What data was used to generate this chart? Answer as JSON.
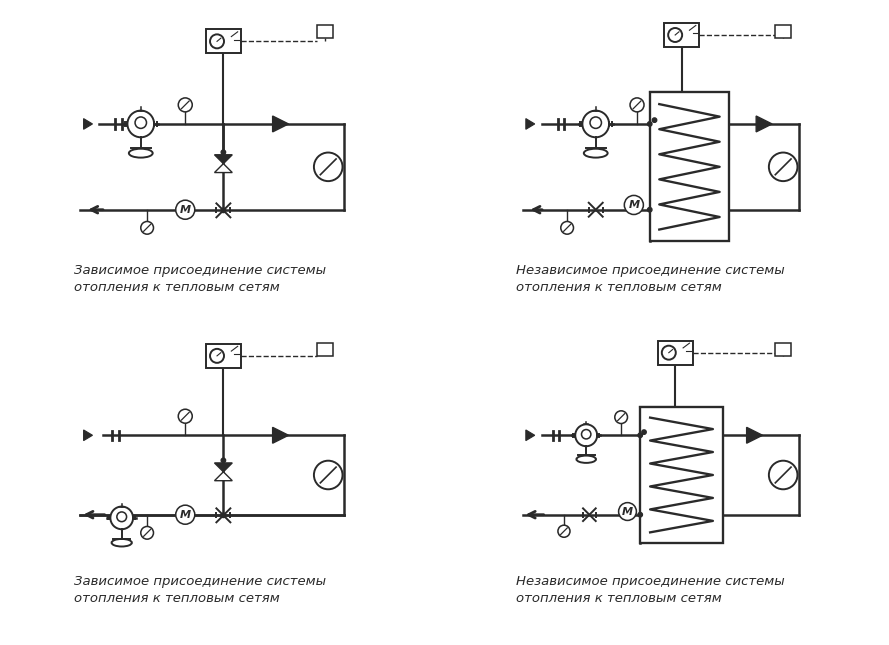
{
  "background_color": "#ffffff",
  "line_color": "#2a2a2a",
  "text_color": "#2a2a2a",
  "captions": [
    "Зависимое присоединение системы\nотопления к тепловым сетям",
    "Независимое присоединение системы\nотопления к тепловым сетям",
    "Зависимое присоединение системы\nотопления к тепловым сетям",
    "Независимое присоединение системы\nотопления к тепловым сетям"
  ],
  "panel_border_color": "#888888",
  "lw_pipe": 1.8,
  "lw_comp": 1.4
}
